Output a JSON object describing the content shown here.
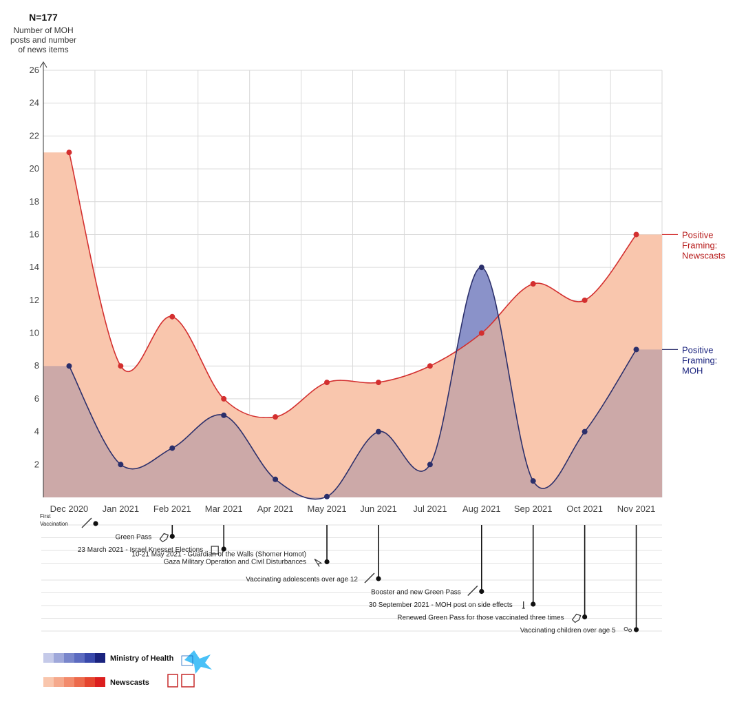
{
  "chart_data": {
    "type": "area",
    "n_label": "N=177",
    "ylabel_lines": [
      "Number of MOH",
      "posts and number",
      "of news items"
    ],
    "ylim": [
      0,
      26
    ],
    "yticks": [
      2,
      4,
      6,
      8,
      10,
      12,
      14,
      16,
      18,
      20,
      22,
      24,
      26
    ],
    "categories": [
      "Dec 2020",
      "Jan 2021",
      "Feb 2021",
      "Mar 2021",
      "Apr 2021",
      "May 2021",
      "Jun 2021",
      "Jul 2021",
      "Aug 2021",
      "Sep 2021",
      "Oct 2021",
      "Nov 2021"
    ],
    "grid": true,
    "series": [
      {
        "name": "Positive Framing: Newscasts",
        "label_lines": [
          "Positive",
          "Framing:",
          "Newscasts"
        ],
        "color": "#d32f2f",
        "fill": "#f9c6ad",
        "values": [
          21,
          8,
          11,
          6,
          4.9,
          7,
          7,
          8,
          10,
          13,
          12,
          16
        ]
      },
      {
        "name": "Positive Framing: MOH",
        "label_lines": [
          "Positive",
          "Framing:",
          "MOH"
        ],
        "color": "#2b2f6b",
        "fill": "#c7a5a7",
        "values": [
          8,
          2,
          3,
          5,
          1.1,
          0.05,
          4,
          2,
          14,
          1,
          4,
          9
        ]
      }
    ],
    "events": [
      {
        "label_lines": [
          "First",
          "Vaccination"
        ],
        "month": 0.6,
        "icon": "syringe-icon"
      },
      {
        "label_lines": [
          "Green Pass"
        ],
        "month": 2,
        "icon": "tag-icon"
      },
      {
        "label_lines": [
          "23 March 2021 - Israel Knesset Elections"
        ],
        "month": 3,
        "icon": "ballot-icon"
      },
      {
        "label_lines": [
          "10-21 May 2021 - Guardian of the Walls (Shomer Homot)",
          "Gaza Military Operation and Civil Disturbances"
        ],
        "month": 5,
        "icon": "cursor-icon"
      },
      {
        "label_lines": [
          "Vaccinating adolescents over age 12"
        ],
        "month": 6,
        "icon": "syringe-icon"
      },
      {
        "label_lines": [
          "Booster and new Green Pass"
        ],
        "month": 8,
        "icon": "syringe-icon"
      },
      {
        "label_lines": [
          "30 September 2021 - MOH post on side effects"
        ],
        "month": 9,
        "icon": "info-icon"
      },
      {
        "label_lines": [
          "Renewed Green Pass for those vaccinated three times"
        ],
        "month": 10,
        "icon": "tag-icon"
      },
      {
        "label_lines": [
          "Vaccinating children over age 5"
        ],
        "month": 11,
        "icon": "children-icon"
      }
    ],
    "legend": [
      {
        "label": "Ministry of Health",
        "colors": [
          "#c5cae9",
          "#9fa8da",
          "#7986cb",
          "#5c6bc0",
          "#3949ab",
          "#1a237e"
        ],
        "logo": "moh-logo"
      },
      {
        "label": "Newscasts",
        "colors": [
          "#f9c6ad",
          "#f5a98c",
          "#f28b6c",
          "#ec6a4c",
          "#e5452f",
          "#dc1f1f"
        ],
        "logo": "news-logos"
      }
    ]
  }
}
